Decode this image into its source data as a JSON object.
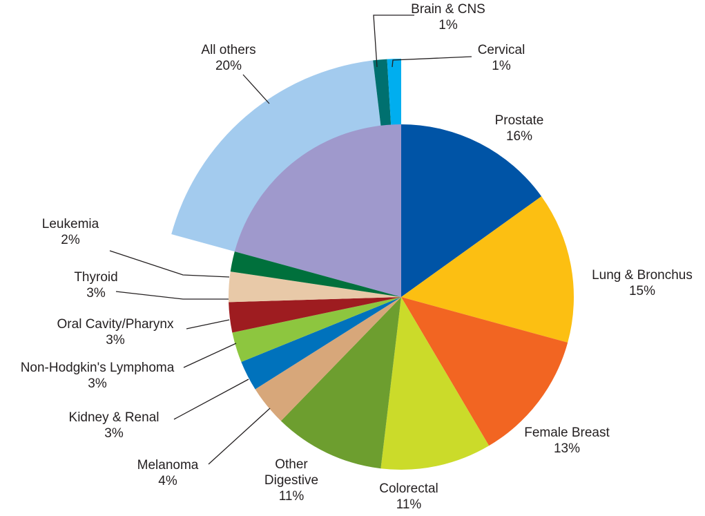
{
  "chart_data": {
    "type": "pie",
    "title": "",
    "slices": [
      {
        "category": "Prostate",
        "value": 16,
        "label": "16%",
        "color": "#0054a6"
      },
      {
        "category": "Lung & Bronchus",
        "value": 15,
        "label": "15%",
        "color": "#fcbf12"
      },
      {
        "category": "Female Breast",
        "value": 13,
        "label": "13%",
        "color": "#f26522"
      },
      {
        "category": "Colorectal",
        "value": 11,
        "label": "11%",
        "color": "#cbdb2a"
      },
      {
        "category": "Other Digestive",
        "category_lines": [
          "Other",
          "Digestive"
        ],
        "value": 11,
        "label": "11%",
        "color": "#6d9e2f"
      },
      {
        "category": "Melanoma",
        "value": 4,
        "label": "4%",
        "color": "#d7a77a"
      },
      {
        "category": "Kidney & Renal",
        "value": 3,
        "label": "3%",
        "color": "#0072bc"
      },
      {
        "category": "Non-Hodgkin's Lymphoma",
        "value": 3,
        "label": "3%",
        "color": "#8dc63f"
      },
      {
        "category": "Oral Cavity/Pharynx",
        "value": 3,
        "label": "3%",
        "color": "#9e1c20"
      },
      {
        "category": "Thyroid",
        "value": 3,
        "label": "3%",
        "color": "#e8c9a8"
      },
      {
        "category": "Leukemia",
        "value": 2,
        "label": "2%",
        "color": "#00703c"
      },
      {
        "category": "All others",
        "value": 20,
        "label": "20%",
        "color": "#a3cbee",
        "exploded": true
      },
      {
        "category": "Brain & CNS",
        "value": 1,
        "label": "1%",
        "color": "#00706f",
        "exploded": true
      },
      {
        "category": "Cervical",
        "value": 1,
        "label": "1%",
        "color": "#00aeef",
        "exploded": true
      }
    ],
    "combined_inner_slice_color": "#9f99cc",
    "legend": "none",
    "labels": "outside with leader lines"
  }
}
